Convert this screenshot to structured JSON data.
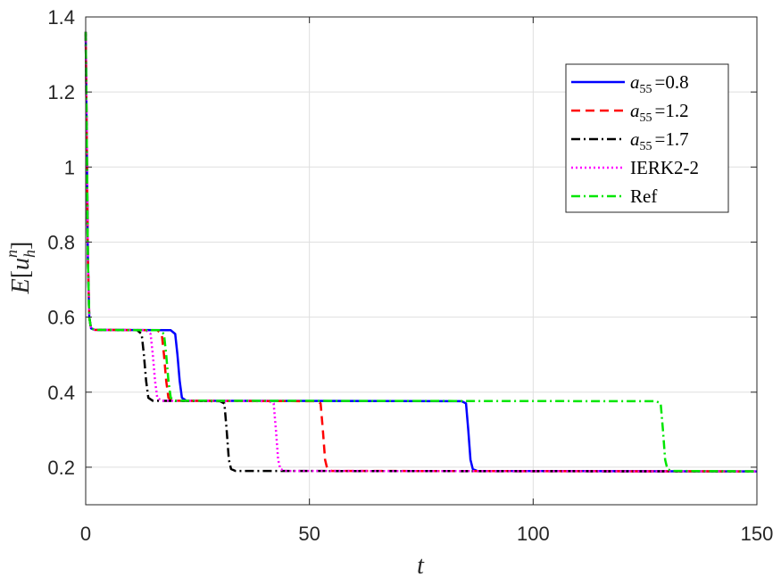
{
  "chart_data": {
    "type": "line",
    "xlabel": "t",
    "ylabel_parts": {
      "E": "E",
      "u": "u",
      "h": "h",
      "n": "n"
    },
    "xlim": [
      0,
      150
    ],
    "ylim": [
      0.1,
      1.4
    ],
    "xticks": [
      0,
      50,
      100,
      150
    ],
    "xtick_labels": [
      "0",
      "50",
      "100",
      "150"
    ],
    "yticks": [
      0.2,
      0.4,
      0.6,
      0.8,
      1.0,
      1.2,
      1.4
    ],
    "ytick_labels": [
      "0.2",
      "0.4",
      "0.6",
      "0.8",
      "1",
      "1.2",
      "1.4"
    ],
    "grid": true,
    "legend_position": "top-right",
    "series": [
      {
        "name_base": "a",
        "name_sub": "55",
        "name_value": "=0.8",
        "color": "#0000ff",
        "style": "solid",
        "x": [
          0,
          0.3,
          0.5,
          0.8,
          1.2,
          2,
          19,
          20,
          20.5,
          21,
          21.5,
          22.5,
          84,
          85,
          85.5,
          86,
          86.5,
          87.5,
          150
        ],
        "y": [
          1.36,
          1.0,
          0.75,
          0.6,
          0.57,
          0.566,
          0.565,
          0.555,
          0.5,
          0.43,
          0.385,
          0.377,
          0.376,
          0.37,
          0.3,
          0.22,
          0.195,
          0.19,
          0.189
        ]
      },
      {
        "name_base": "a",
        "name_sub": "55",
        "name_value": "=1.2",
        "color": "#ff0000",
        "style": "dashed",
        "x": [
          0,
          0.3,
          0.5,
          0.8,
          1.2,
          2,
          16,
          17,
          17.5,
          18,
          18.5,
          19.5,
          51.5,
          52.5,
          53,
          53.5,
          54,
          55,
          150
        ],
        "y": [
          1.36,
          1.0,
          0.75,
          0.6,
          0.57,
          0.566,
          0.565,
          0.555,
          0.5,
          0.43,
          0.385,
          0.377,
          0.376,
          0.37,
          0.3,
          0.22,
          0.195,
          0.19,
          0.189
        ]
      },
      {
        "name_base": "a",
        "name_sub": "55",
        "name_value": "=1.7",
        "color": "#000000",
        "style": "dashdot",
        "x": [
          0,
          0.3,
          0.5,
          0.8,
          1.2,
          2,
          11.5,
          12.5,
          13,
          13.5,
          14,
          15,
          30,
          31,
          31.5,
          32,
          32.5,
          33.5,
          150
        ],
        "y": [
          1.36,
          1.0,
          0.75,
          0.6,
          0.57,
          0.566,
          0.565,
          0.555,
          0.5,
          0.43,
          0.385,
          0.377,
          0.376,
          0.37,
          0.3,
          0.22,
          0.195,
          0.19,
          0.189
        ]
      },
      {
        "name": "IERK2-2",
        "color": "#ff00ff",
        "style": "dotted",
        "x": [
          0,
          0.3,
          0.5,
          0.8,
          1.2,
          2,
          13.5,
          14.5,
          15,
          15.5,
          16,
          17,
          41,
          42,
          42.5,
          43,
          43.5,
          44.5,
          150
        ],
        "y": [
          1.36,
          1.0,
          0.75,
          0.6,
          0.57,
          0.566,
          0.565,
          0.555,
          0.5,
          0.43,
          0.385,
          0.377,
          0.376,
          0.37,
          0.3,
          0.22,
          0.195,
          0.19,
          0.189
        ]
      },
      {
        "name": "Ref",
        "color": "#00e600",
        "style": "dashdot",
        "x": [
          0,
          0.3,
          0.5,
          0.8,
          1.2,
          2,
          16.5,
          17.5,
          18,
          18.5,
          19,
          20,
          127.5,
          128.5,
          129,
          129.5,
          130,
          131,
          150
        ],
        "y": [
          1.36,
          1.0,
          0.75,
          0.6,
          0.57,
          0.566,
          0.565,
          0.555,
          0.5,
          0.43,
          0.385,
          0.377,
          0.376,
          0.37,
          0.3,
          0.22,
          0.195,
          0.19,
          0.189
        ]
      }
    ]
  }
}
